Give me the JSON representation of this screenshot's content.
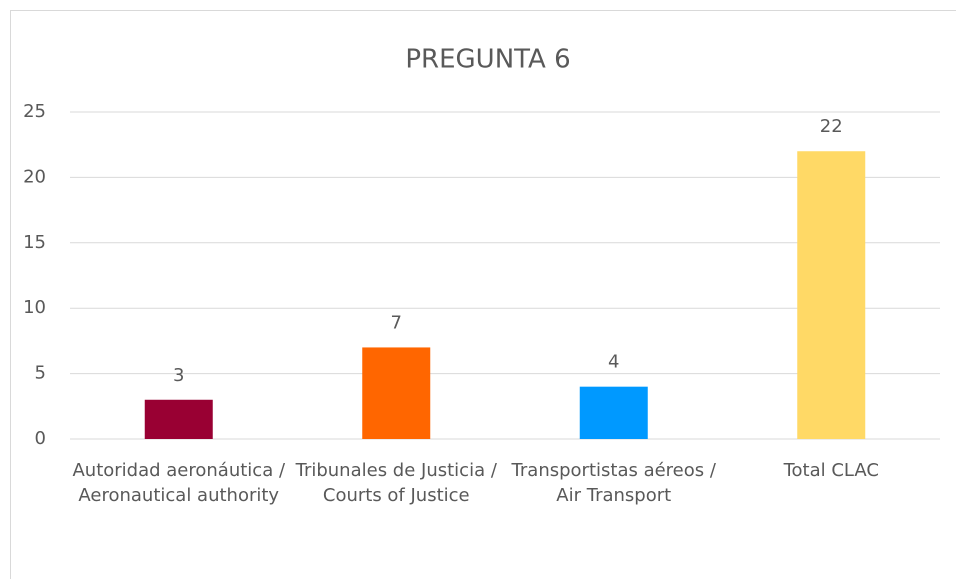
{
  "chart_data": {
    "type": "bar",
    "title": "PREGUNTA 6",
    "categories": [
      "Autoridad aeronáutica / Aeronautical authority",
      "Tribunales de Justicia / Courts of Justice",
      "Transportistas aéreos / Air Transport",
      "Total CLAC"
    ],
    "values": [
      3,
      7,
      4,
      22
    ],
    "colors": [
      "#990033",
      "#ff6600",
      "#0099ff",
      "#ffd966"
    ],
    "ylim": [
      0,
      25
    ],
    "yticks": [
      0,
      5,
      10,
      15,
      20,
      25
    ],
    "grid": true
  }
}
